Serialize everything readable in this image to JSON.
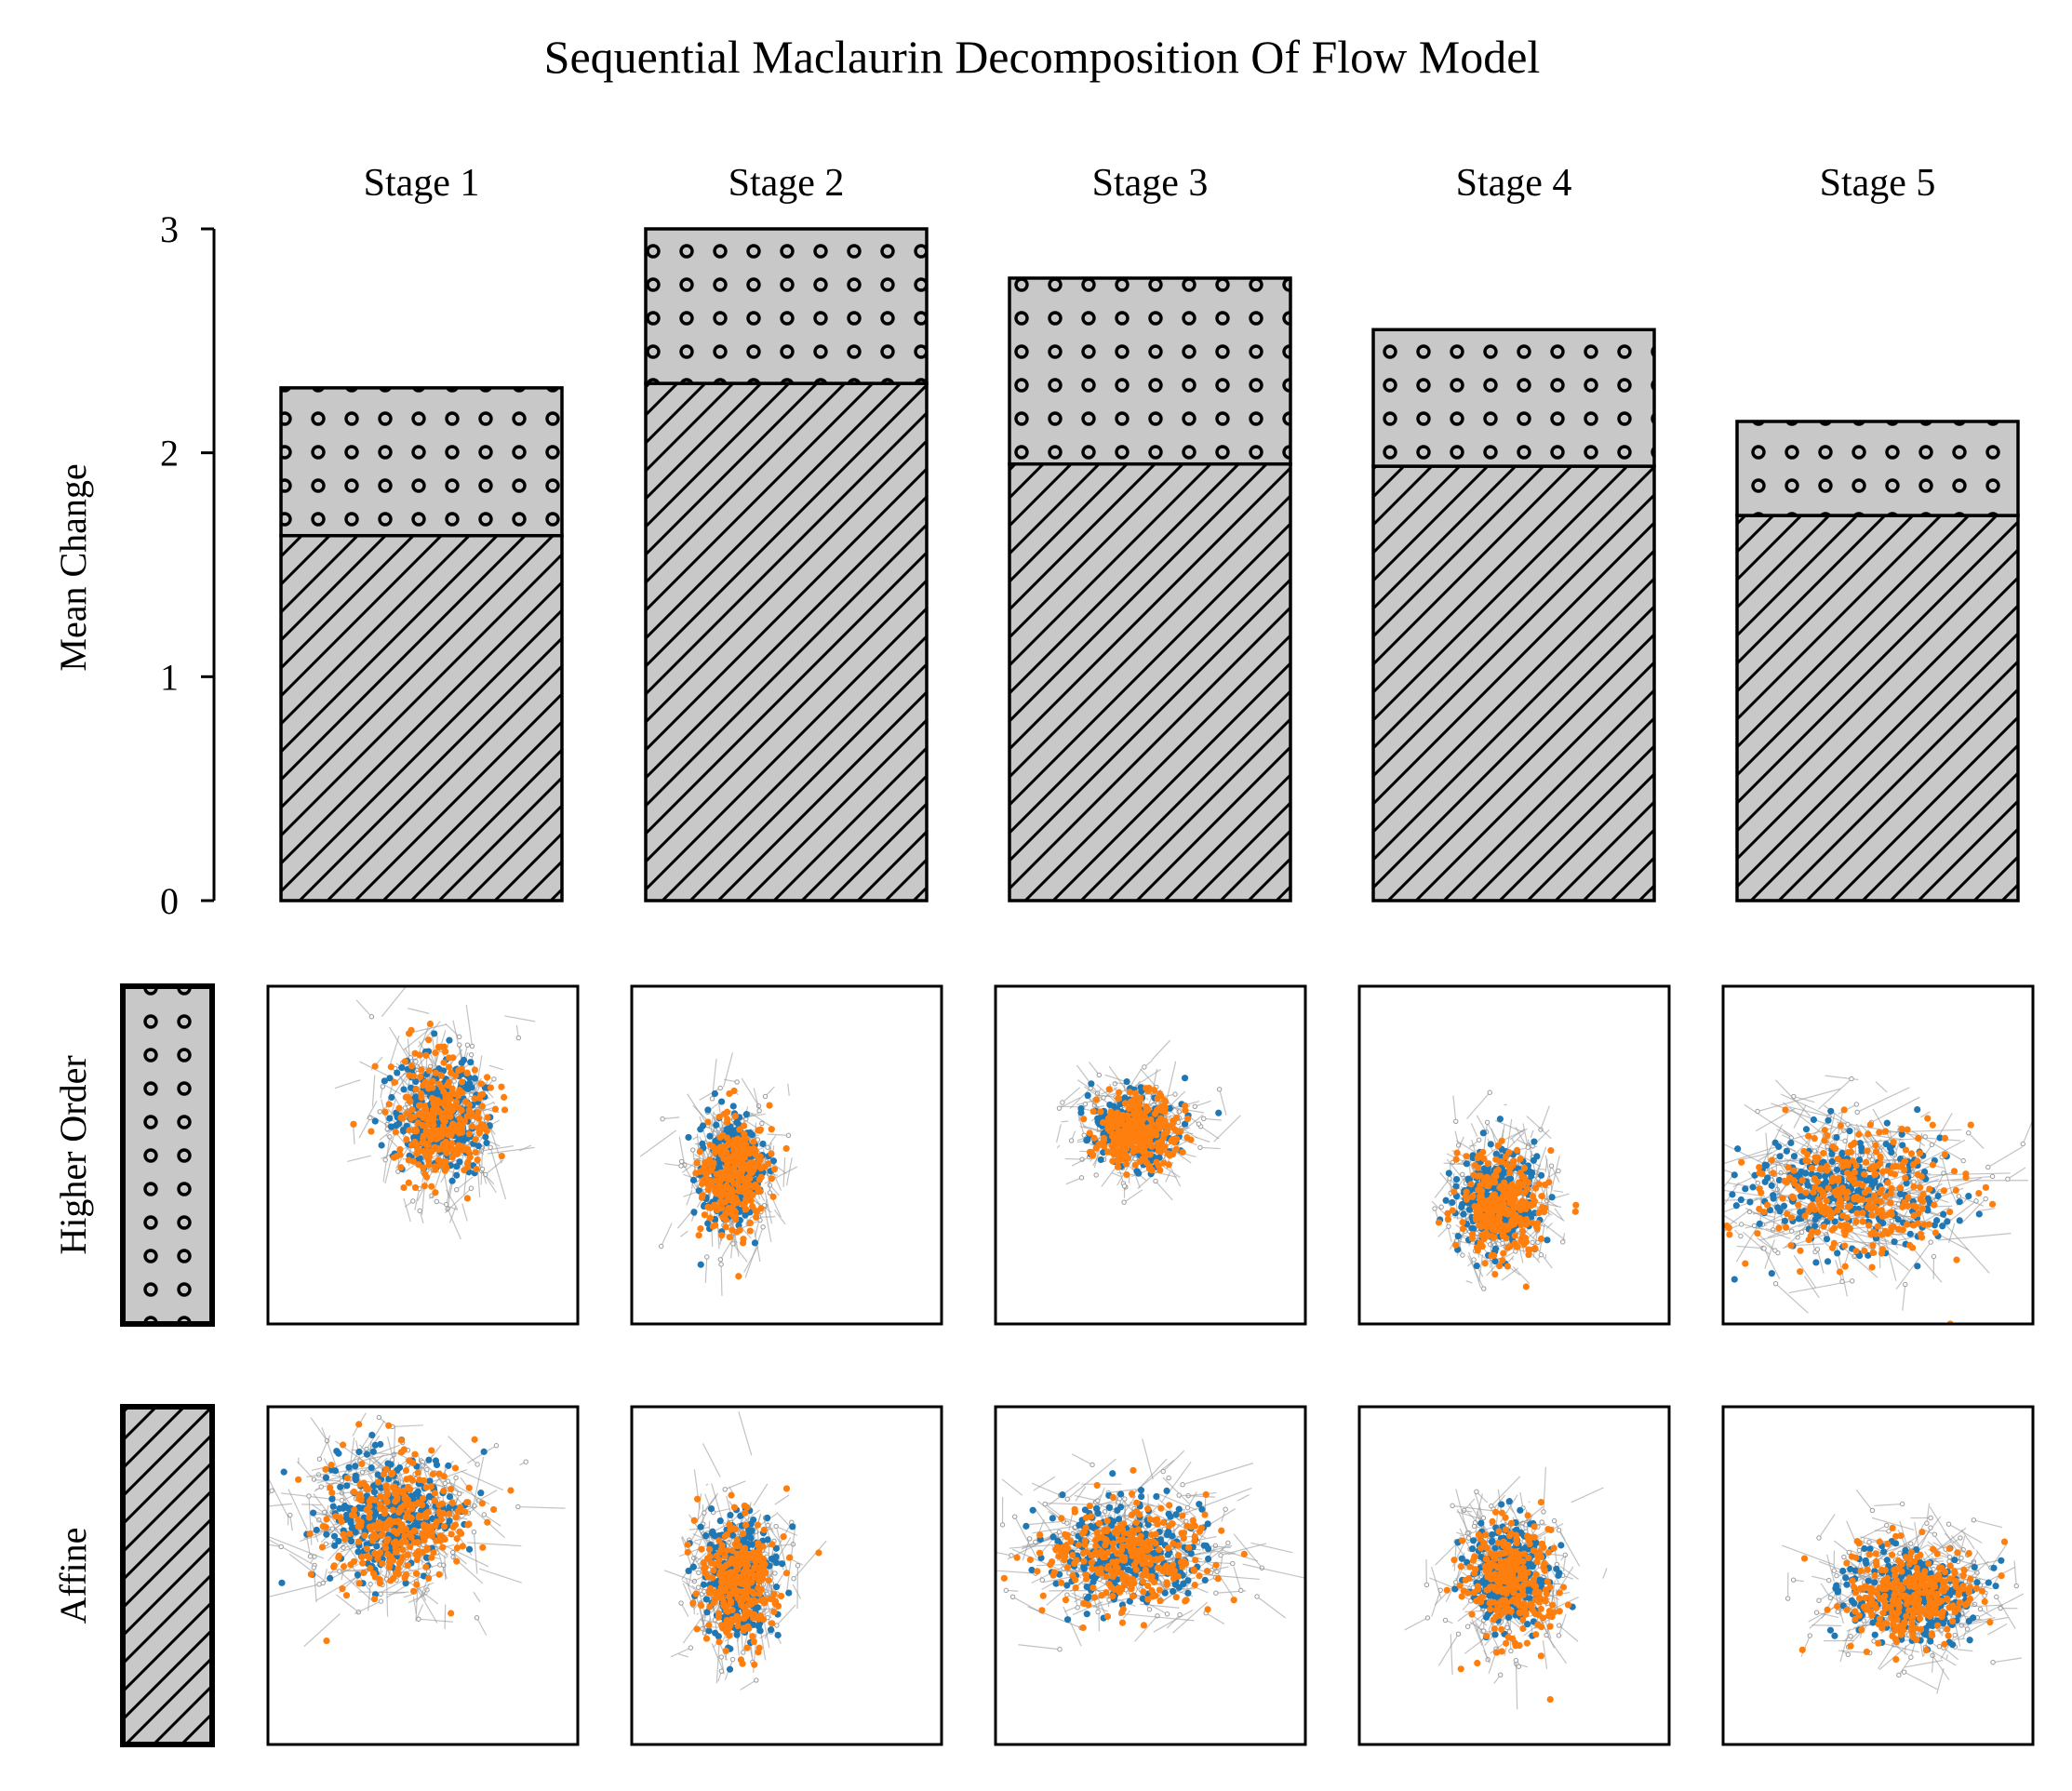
{
  "title": "Sequential Maclaurin Decomposition Of Flow Model",
  "colors": {
    "bar_fill": "#c8c8c8",
    "edge": "#000000",
    "link_gray": "#9a9a9a",
    "blue": "#1f77b4",
    "orange": "#ff7f0e"
  },
  "chart_data": {
    "type": "bar",
    "stacked": true,
    "categories": [
      "Stage 1",
      "Stage 2",
      "Stage 3",
      "Stage 4",
      "Stage 5"
    ],
    "series": [
      {
        "name": "Affine",
        "hatch": "diagonal",
        "values": [
          1.63,
          2.31,
          1.95,
          1.94,
          1.72
        ]
      },
      {
        "name": "Higher Order",
        "hatch": "circles",
        "values": [
          0.66,
          0.69,
          0.83,
          0.61,
          0.42
        ]
      }
    ],
    "ylabel": "Mean Change",
    "ylim": [
      0,
      3
    ],
    "yticks": [
      0,
      1,
      2,
      3
    ],
    "grid": false
  },
  "rows": [
    {
      "label": "Higher Order",
      "hatch": "circles"
    },
    {
      "label": "Affine",
      "hatch": "diagonal"
    }
  ]
}
